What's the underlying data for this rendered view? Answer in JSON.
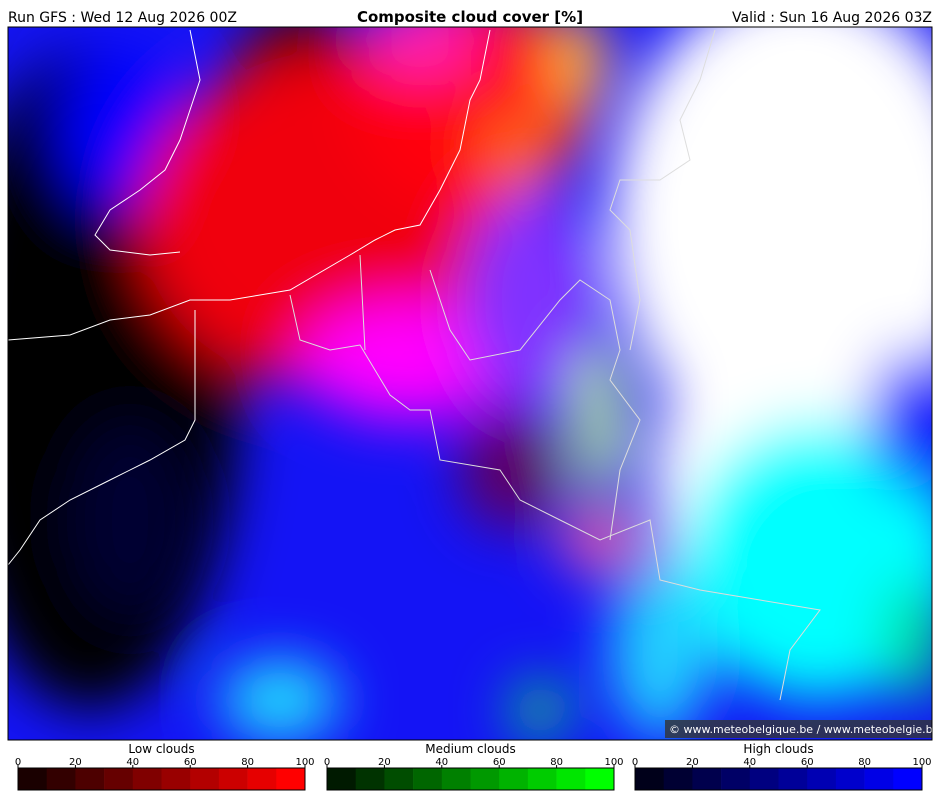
{
  "header": {
    "run": "Run GFS : Wed 12 Aug 2026 00Z",
    "title": "Composite cloud cover [%]",
    "valid": "Valid : Sun 16 Aug 2026 03Z"
  },
  "map": {
    "credit": "© www.meteobelgique.be / www.meteobelgie.be"
  },
  "legends": [
    {
      "name": "Low clouds",
      "ticks": [
        0,
        20,
        40,
        60,
        80,
        100
      ],
      "colors": [
        "#1a0000",
        "#330000",
        "#4d0000",
        "#660000",
        "#800000",
        "#990000",
        "#b30000",
        "#cc0000",
        "#e60000",
        "#ff0000"
      ]
    },
    {
      "name": "Medium clouds",
      "ticks": [
        0,
        20,
        40,
        60,
        80,
        100
      ],
      "colors": [
        "#001a00",
        "#003300",
        "#004d00",
        "#006600",
        "#008000",
        "#009900",
        "#00b300",
        "#00cc00",
        "#00e600",
        "#00ff00"
      ]
    },
    {
      "name": "High clouds",
      "ticks": [
        0,
        20,
        40,
        60,
        80,
        100
      ],
      "colors": [
        "#00001a",
        "#000033",
        "#00004d",
        "#000066",
        "#000080",
        "#000099",
        "#0000b3",
        "#0000cc",
        "#0000e6",
        "#0000ff"
      ]
    }
  ]
}
